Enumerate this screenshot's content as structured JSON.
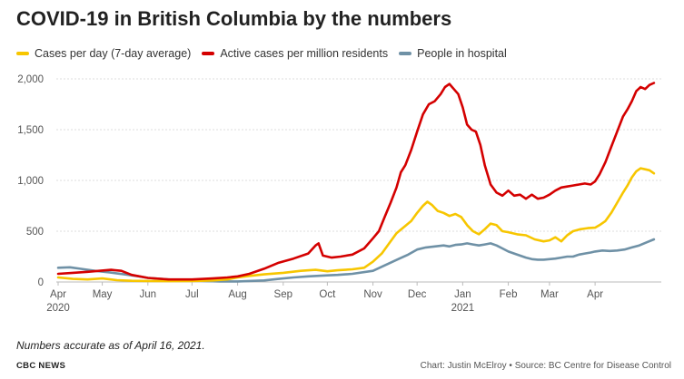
{
  "chart_data": {
    "type": "line",
    "title": "COVID-19 in British Columbia by the numbers",
    "xlabel": "",
    "ylabel": "",
    "ylim": [
      0,
      2000
    ],
    "yticks": [
      0,
      500,
      1000,
      1500,
      2000
    ],
    "ytick_labels": [
      "0",
      "500",
      "1,000",
      "1,500",
      "2,000"
    ],
    "x_axis": {
      "start_date": "2020-04-01",
      "end_date": "2021-04-16",
      "ticks": [
        {
          "day": 0,
          "label": "Apr",
          "year": "2020"
        },
        {
          "day": 30,
          "label": "May"
        },
        {
          "day": 61,
          "label": "Jun"
        },
        {
          "day": 91,
          "label": "Jul"
        },
        {
          "day": 122,
          "label": "Aug"
        },
        {
          "day": 153,
          "label": "Sep"
        },
        {
          "day": 183,
          "label": "Oct"
        },
        {
          "day": 214,
          "label": "Nov"
        },
        {
          "day": 244,
          "label": "Dec"
        },
        {
          "day": 275,
          "label": "Jan",
          "year": "2021"
        },
        {
          "day": 306,
          "label": "Feb"
        },
        {
          "day": 334,
          "label": "Mar"
        },
        {
          "day": 365,
          "label": "Apr"
        }
      ]
    },
    "series": [
      {
        "name": "Cases per day (7-day average)",
        "color": "#f7c600",
        "points": [
          [
            0,
            45
          ],
          [
            10,
            30
          ],
          [
            20,
            25
          ],
          [
            30,
            35
          ],
          [
            40,
            18
          ],
          [
            50,
            12
          ],
          [
            61,
            10
          ],
          [
            75,
            8
          ],
          [
            91,
            10
          ],
          [
            105,
            15
          ],
          [
            115,
            25
          ],
          [
            122,
            45
          ],
          [
            130,
            60
          ],
          [
            140,
            75
          ],
          [
            153,
            90
          ],
          [
            165,
            110
          ],
          [
            175,
            120
          ],
          [
            183,
            105
          ],
          [
            190,
            115
          ],
          [
            200,
            125
          ],
          [
            208,
            140
          ],
          [
            214,
            200
          ],
          [
            220,
            280
          ],
          [
            225,
            380
          ],
          [
            230,
            480
          ],
          [
            235,
            540
          ],
          [
            240,
            600
          ],
          [
            244,
            680
          ],
          [
            248,
            750
          ],
          [
            251,
            790
          ],
          [
            254,
            760
          ],
          [
            258,
            700
          ],
          [
            262,
            680
          ],
          [
            266,
            650
          ],
          [
            270,
            670
          ],
          [
            274,
            640
          ],
          [
            278,
            560
          ],
          [
            282,
            500
          ],
          [
            286,
            470
          ],
          [
            290,
            520
          ],
          [
            294,
            575
          ],
          [
            298,
            560
          ],
          [
            302,
            500
          ],
          [
            306,
            490
          ],
          [
            312,
            470
          ],
          [
            318,
            460
          ],
          [
            324,
            420
          ],
          [
            330,
            400
          ],
          [
            334,
            410
          ],
          [
            338,
            440
          ],
          [
            342,
            400
          ],
          [
            346,
            460
          ],
          [
            350,
            500
          ],
          [
            355,
            520
          ],
          [
            360,
            530
          ],
          [
            365,
            535
          ],
          [
            368,
            560
          ],
          [
            372,
            600
          ],
          [
            376,
            680
          ],
          [
            380,
            780
          ],
          [
            384,
            880
          ],
          [
            387,
            950
          ],
          [
            390,
            1030
          ],
          [
            393,
            1090
          ],
          [
            396,
            1120
          ],
          [
            399,
            1110
          ],
          [
            402,
            1100
          ],
          [
            405,
            1070
          ]
        ]
      },
      {
        "name": "Active cases per million residents",
        "color": "#d40000",
        "points": [
          [
            0,
            80
          ],
          [
            10,
            90
          ],
          [
            20,
            100
          ],
          [
            28,
            110
          ],
          [
            36,
            120
          ],
          [
            43,
            110
          ],
          [
            50,
            70
          ],
          [
            61,
            40
          ],
          [
            75,
            25
          ],
          [
            91,
            25
          ],
          [
            105,
            35
          ],
          [
            115,
            45
          ],
          [
            122,
            55
          ],
          [
            130,
            80
          ],
          [
            140,
            130
          ],
          [
            150,
            190
          ],
          [
            160,
            230
          ],
          [
            170,
            280
          ],
          [
            175,
            360
          ],
          [
            177,
            380
          ],
          [
            180,
            260
          ],
          [
            186,
            240
          ],
          [
            192,
            250
          ],
          [
            200,
            270
          ],
          [
            208,
            330
          ],
          [
            214,
            430
          ],
          [
            218,
            500
          ],
          [
            222,
            640
          ],
          [
            226,
            780
          ],
          [
            230,
            930
          ],
          [
            233,
            1080
          ],
          [
            236,
            1150
          ],
          [
            240,
            1300
          ],
          [
            244,
            1480
          ],
          [
            248,
            1650
          ],
          [
            252,
            1750
          ],
          [
            256,
            1780
          ],
          [
            260,
            1850
          ],
          [
            263,
            1920
          ],
          [
            266,
            1950
          ],
          [
            269,
            1900
          ],
          [
            272,
            1850
          ],
          [
            275,
            1720
          ],
          [
            278,
            1550
          ],
          [
            281,
            1500
          ],
          [
            284,
            1480
          ],
          [
            287,
            1350
          ],
          [
            290,
            1150
          ],
          [
            294,
            960
          ],
          [
            298,
            880
          ],
          [
            302,
            850
          ],
          [
            306,
            900
          ],
          [
            310,
            850
          ],
          [
            314,
            860
          ],
          [
            318,
            820
          ],
          [
            322,
            860
          ],
          [
            326,
            820
          ],
          [
            330,
            830
          ],
          [
            334,
            860
          ],
          [
            338,
            900
          ],
          [
            342,
            930
          ],
          [
            346,
            940
          ],
          [
            350,
            950
          ],
          [
            354,
            960
          ],
          [
            358,
            970
          ],
          [
            362,
            960
          ],
          [
            365,
            990
          ],
          [
            368,
            1060
          ],
          [
            372,
            1180
          ],
          [
            376,
            1330
          ],
          [
            380,
            1480
          ],
          [
            384,
            1630
          ],
          [
            387,
            1700
          ],
          [
            390,
            1780
          ],
          [
            393,
            1880
          ],
          [
            396,
            1920
          ],
          [
            399,
            1900
          ],
          [
            402,
            1940
          ],
          [
            405,
            1960
          ]
        ]
      },
      {
        "name": "People in hospital",
        "color": "#6f91a6",
        "points": [
          [
            0,
            140
          ],
          [
            8,
            145
          ],
          [
            15,
            130
          ],
          [
            25,
            110
          ],
          [
            35,
            95
          ],
          [
            45,
            75
          ],
          [
            55,
            55
          ],
          [
            61,
            40
          ],
          [
            70,
            30
          ],
          [
            80,
            20
          ],
          [
            91,
            15
          ],
          [
            100,
            10
          ],
          [
            110,
            5
          ],
          [
            122,
            5
          ],
          [
            130,
            10
          ],
          [
            140,
            15
          ],
          [
            150,
            30
          ],
          [
            160,
            45
          ],
          [
            170,
            55
          ],
          [
            183,
            65
          ],
          [
            190,
            70
          ],
          [
            200,
            80
          ],
          [
            214,
            110
          ],
          [
            220,
            150
          ],
          [
            226,
            190
          ],
          [
            232,
            230
          ],
          [
            238,
            270
          ],
          [
            244,
            320
          ],
          [
            250,
            340
          ],
          [
            256,
            350
          ],
          [
            262,
            360
          ],
          [
            266,
            350
          ],
          [
            270,
            365
          ],
          [
            274,
            370
          ],
          [
            278,
            380
          ],
          [
            282,
            370
          ],
          [
            286,
            360
          ],
          [
            290,
            370
          ],
          [
            294,
            380
          ],
          [
            298,
            360
          ],
          [
            302,
            330
          ],
          [
            306,
            300
          ],
          [
            310,
            280
          ],
          [
            314,
            260
          ],
          [
            318,
            240
          ],
          [
            322,
            225
          ],
          [
            326,
            220
          ],
          [
            330,
            220
          ],
          [
            334,
            225
          ],
          [
            338,
            230
          ],
          [
            342,
            240
          ],
          [
            346,
            250
          ],
          [
            350,
            250
          ],
          [
            354,
            270
          ],
          [
            358,
            280
          ],
          [
            362,
            290
          ],
          [
            365,
            300
          ],
          [
            370,
            310
          ],
          [
            375,
            305
          ],
          [
            380,
            310
          ],
          [
            385,
            320
          ],
          [
            390,
            340
          ],
          [
            395,
            360
          ],
          [
            400,
            390
          ],
          [
            405,
            420
          ]
        ]
      }
    ]
  },
  "note": "Numbers accurate as of April 16, 2021.",
  "brand": "CBC NEWS",
  "credit": "Chart: Justin McElroy • Source: BC Centre for Disease Control",
  "colors": {
    "grid": "#dddddd",
    "axis": "#bbbbbb",
    "text": "#222222"
  }
}
